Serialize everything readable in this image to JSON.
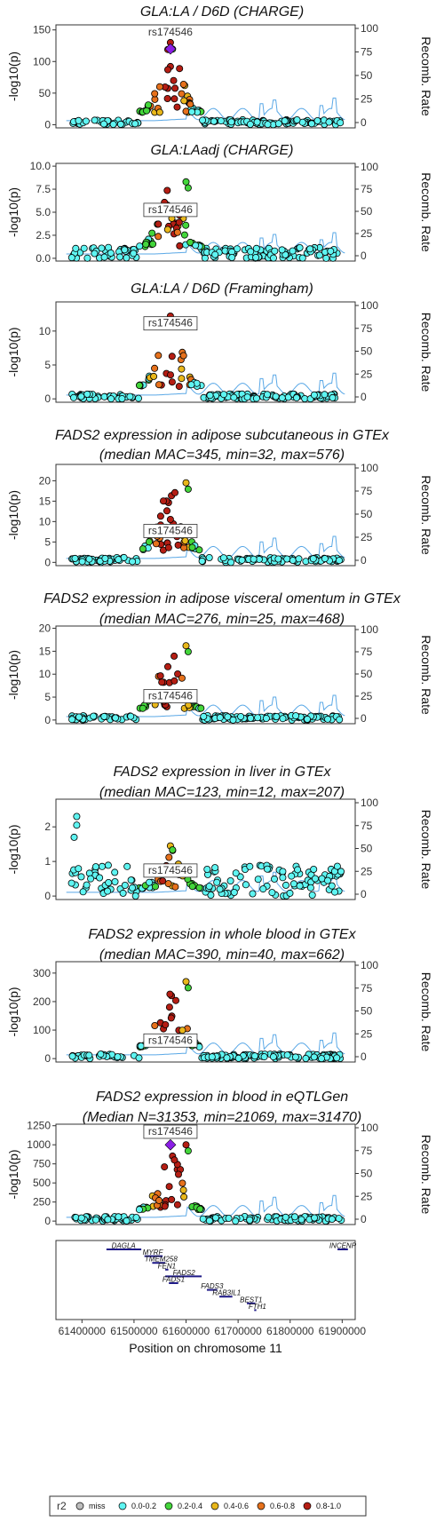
{
  "colors": {
    "miss": "#bdbdbd",
    "r2_0": "#5ff5f2",
    "r2_1": "#43d63b",
    "r2_2": "#e9b71a",
    "r2_3": "#e6711c",
    "r2_4": "#b51e14",
    "lead": "#8b1ee6",
    "recomb": "#5aa8e6",
    "gene": "#1f1a87"
  },
  "chart_data": [
    {
      "type": "scatter",
      "title": [
        "GLA:LA / D6D (CHARGE)"
      ],
      "ylabel": "-log10(p)",
      "y2label": "Recomb. Rate",
      "y_ticks": [
        0,
        50,
        100,
        150
      ],
      "tick_labels": [
        "0",
        "50",
        "100",
        "150"
      ],
      "ylim": [
        -5,
        158
      ],
      "lead_snp": "rs174546",
      "lead_y": 120,
      "peak_y": 130,
      "shape": "charge"
    },
    {
      "type": "scatter",
      "title": [
        "GLA:LAadj (CHARGE)"
      ],
      "ylabel": "-log10(p)",
      "y2label": "Recomb. Rate",
      "y_ticks": [
        0,
        2.5,
        5,
        7.5,
        10
      ],
      "tick_labels": [
        "0.0",
        "2.5",
        "5.0",
        "7.5",
        "10.0"
      ],
      "ylim": [
        -0.3,
        10.3
      ],
      "lead_snp": "rs174546",
      "lead_y": 5.3,
      "peak_y": 8.3,
      "shape": "adj"
    },
    {
      "type": "scatter",
      "title": [
        "GLA:LA / D6D (Framingham)"
      ],
      "ylabel": "-log10(p)",
      "y2label": "Recomb. Rate",
      "y_ticks": [
        0,
        5,
        10
      ],
      "tick_labels": [
        "0",
        "5",
        "10"
      ],
      "ylim": [
        -0.5,
        14.3
      ],
      "lead_snp": "rs174546",
      "lead_y": 11.2,
      "peak_y": 12.2,
      "shape": "fram"
    },
    {
      "type": "scatter",
      "title": [
        "FADS2 expression in adipose subcutaneous in GTEx",
        "(median MAC=345, min=32, max=576)"
      ],
      "ylabel": "-log10(p)",
      "y2label": "Recomb. Rate",
      "y_ticks": [
        0,
        5,
        10,
        15,
        20
      ],
      "tick_labels": [
        "0",
        "5",
        "10",
        "15",
        "20"
      ],
      "ylim": [
        -0.8,
        24
      ],
      "lead_snp": "rs174546",
      "lead_y": 7.8,
      "peak_y": 19.5,
      "shape": "eqtl"
    },
    {
      "type": "scatter",
      "title": [
        "FADS2 expression in adipose visceral omentum in GTEx",
        "(median MAC=276, min=25, max=468)"
      ],
      "ylabel": "-log10(p)",
      "y2label": "Recomb. Rate",
      "y_ticks": [
        0,
        5,
        10,
        15,
        20
      ],
      "tick_labels": [
        "0",
        "5",
        "10",
        "15",
        "20"
      ],
      "ylim": [
        -0.8,
        20.5
      ],
      "lead_snp": "rs174546",
      "lead_y": 5.3,
      "peak_y": 16.2,
      "shape": "eqtl"
    },
    {
      "type": "scatter",
      "title": [
        "FADS2 expression in liver in GTEx",
        "(median MAC=123, min=12, max=207)"
      ],
      "ylabel": "-log10(p)",
      "y2label": "Recomb. Rate",
      "y_ticks": [
        0,
        1,
        2
      ],
      "tick_labels": [
        "0",
        "1",
        "2"
      ],
      "ylim": [
        -0.1,
        2.8
      ],
      "lead_snp": "rs174546",
      "lead_y": 0.75,
      "peak_y": 1.45,
      "shape": "liver"
    },
    {
      "type": "scatter",
      "title": [
        "FADS2 expression in whole blood in GTEx",
        "(median MAC=390, min=40, max=662)"
      ],
      "ylabel": "-log10(p)",
      "y2label": "Recomb. Rate",
      "y_ticks": [
        0,
        100,
        200,
        300
      ],
      "tick_labels": [
        "0",
        "100",
        "200",
        "300"
      ],
      "ylim": [
        -12,
        340
      ],
      "lead_snp": "rs174546",
      "lead_y": 65,
      "peak_y": 270,
      "shape": "eqtl"
    },
    {
      "type": "scatter",
      "title": [
        "FADS2 expression in blood in eQTLGen",
        "(Median N=31353, min=21069, max=31470)"
      ],
      "ylabel": "-log10(p)",
      "y2label": "Recomb. Rate",
      "y_ticks": [
        0,
        250,
        500,
        750,
        1000,
        1250
      ],
      "tick_labels": [
        "0",
        "250",
        "500",
        "750",
        "1000",
        "1250"
      ],
      "ylim": [
        -45,
        1270
      ],
      "lead_snp": "rs174546",
      "lead_y": 1000,
      "peak_y": 1000,
      "shape": "eqtlgen"
    }
  ],
  "recomb_axis": {
    "ticks": [
      0,
      25,
      50,
      75,
      100
    ],
    "tick_labels": [
      "0",
      "25",
      "50",
      "75",
      "100"
    ]
  },
  "x_axis": {
    "range": [
      61350000,
      61925000
    ],
    "ticks": [
      61400000,
      61500000,
      61600000,
      61700000,
      61800000,
      61900000
    ],
    "tick_labels": [
      "61400000",
      "61500000",
      "61600000",
      "61700000",
      "61800000",
      "61900000"
    ],
    "label": "Position on chromosome 11"
  },
  "lead_position": 61570000,
  "genes": [
    {
      "name": "DAGLA",
      "start": 61447000,
      "end": 61514000,
      "row": 0,
      "label_at": 61480000
    },
    {
      "name": "INCENP",
      "start": 61891000,
      "end": 61911000,
      "row": 0,
      "label_at": 61901000
    },
    {
      "name": "MYRF",
      "start": 61520000,
      "end": 61555000,
      "row": 1,
      "label_at": 61536000
    },
    {
      "name": "TMEM258",
      "start": 61535000,
      "end": 61560000,
      "row": 2,
      "label_at": 61552000
    },
    {
      "name": "FEN1",
      "start": 61560000,
      "end": 61566000,
      "row": 3,
      "label_at": 61563000
    },
    {
      "name": "FADS2",
      "start": 61560000,
      "end": 61630000,
      "row": 4,
      "label_at": 61596000
    },
    {
      "name": "FADS1",
      "start": 61567000,
      "end": 61585000,
      "row": 5,
      "label_at": 61576000
    },
    {
      "name": "FADS3",
      "start": 61640000,
      "end": 61660000,
      "row": 6,
      "label_at": 61650000
    },
    {
      "name": "RAB3IL1",
      "start": 61664000,
      "end": 61689000,
      "row": 7,
      "label_at": 61678000
    },
    {
      "name": "BEST1",
      "start": 61717000,
      "end": 61733000,
      "row": 8,
      "label_at": 61725000
    },
    {
      "name": "FTH1",
      "start": 61731000,
      "end": 61735000,
      "row": 9,
      "label_at": 61737000
    }
  ],
  "legend": {
    "title": "r2",
    "items": [
      {
        "label": "miss",
        "color_key": "miss"
      },
      {
        "label": "0.0-0.2",
        "color_key": "r2_0"
      },
      {
        "label": "0.2-0.4",
        "color_key": "r2_1"
      },
      {
        "label": "0.4-0.6",
        "color_key": "r2_2"
      },
      {
        "label": "0.6-0.8",
        "color_key": "r2_3"
      },
      {
        "label": "0.8-1.0",
        "color_key": "r2_4"
      }
    ]
  }
}
